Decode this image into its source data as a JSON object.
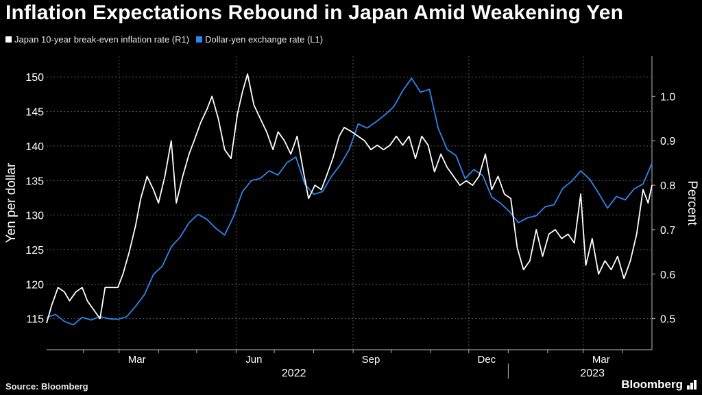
{
  "title": "Inflation Expectations Rebound in Japan Amid Weakening Yen",
  "legend": [
    {
      "label": "Japan 10-year break-even inflation rate (R1)",
      "color": "#ffffff"
    },
    {
      "label": "Dollar-yen exchange rate (L1)",
      "color": "#2e86f0"
    }
  ],
  "source": "Source: Bloomberg",
  "brand": "Bloomberg",
  "chart_data": {
    "type": "line",
    "x_domain": [
      "2022-01-03",
      "2023-04-24"
    ],
    "x_ticks": [
      {
        "label": "Mar",
        "date": "2022-03-01"
      },
      {
        "label": "Jun",
        "date": "2022-06-01"
      },
      {
        "label": "Sep",
        "date": "2022-09-01"
      },
      {
        "label": "Dec",
        "date": "2022-12-01"
      },
      {
        "label": "Mar",
        "date": "2023-03-01"
      }
    ],
    "year_labels": [
      "2022",
      "2023"
    ],
    "left_axis": {
      "label": "Yen per dollar",
      "range": [
        110.5,
        153
      ],
      "ticks": [
        115,
        120,
        125,
        130,
        135,
        140,
        145,
        150
      ]
    },
    "right_axis": {
      "label": "Percent",
      "range": [
        0.43,
        1.09
      ],
      "ticks": [
        "0.5",
        "0.6",
        "0.7",
        "0.8",
        "0.9",
        "1.0"
      ]
    },
    "grid": true,
    "legend_position": "top-left",
    "series": [
      {
        "name": "Dollar-yen exchange rate (L1)",
        "axis": "left",
        "color": "#2e86f0",
        "points": [
          [
            "2022-01-03",
            115.2
          ],
          [
            "2022-01-10",
            115.6
          ],
          [
            "2022-01-17",
            114.6
          ],
          [
            "2022-01-24",
            114.1
          ],
          [
            "2022-01-31",
            115.2
          ],
          [
            "2022-02-07",
            114.8
          ],
          [
            "2022-02-14",
            115.3
          ],
          [
            "2022-02-21",
            115.0
          ],
          [
            "2022-02-28",
            114.9
          ],
          [
            "2022-03-07",
            115.3
          ],
          [
            "2022-03-14",
            116.8
          ],
          [
            "2022-03-21",
            118.5
          ],
          [
            "2022-03-28",
            121.4
          ],
          [
            "2022-04-04",
            122.6
          ],
          [
            "2022-04-11",
            125.4
          ],
          [
            "2022-04-18",
            126.8
          ],
          [
            "2022-04-25",
            128.9
          ],
          [
            "2022-05-02",
            130.1
          ],
          [
            "2022-05-09",
            129.4
          ],
          [
            "2022-05-16",
            128.1
          ],
          [
            "2022-05-23",
            127.1
          ],
          [
            "2022-05-30",
            129.8
          ],
          [
            "2022-06-06",
            133.4
          ],
          [
            "2022-06-13",
            135.0
          ],
          [
            "2022-06-20",
            135.3
          ],
          [
            "2022-06-27",
            136.4
          ],
          [
            "2022-07-04",
            135.8
          ],
          [
            "2022-07-11",
            137.6
          ],
          [
            "2022-07-18",
            138.4
          ],
          [
            "2022-07-25",
            134.5
          ],
          [
            "2022-08-01",
            133.0
          ],
          [
            "2022-08-08",
            133.4
          ],
          [
            "2022-08-15",
            135.6
          ],
          [
            "2022-08-22",
            137.3
          ],
          [
            "2022-08-29",
            139.5
          ],
          [
            "2022-09-05",
            143.2
          ],
          [
            "2022-09-12",
            142.6
          ],
          [
            "2022-09-19",
            143.5
          ],
          [
            "2022-09-26",
            144.5
          ],
          [
            "2022-10-03",
            145.7
          ],
          [
            "2022-10-10",
            148.0
          ],
          [
            "2022-10-17",
            149.8
          ],
          [
            "2022-10-24",
            147.8
          ],
          [
            "2022-10-31",
            148.2
          ],
          [
            "2022-11-07",
            142.5
          ],
          [
            "2022-11-14",
            139.5
          ],
          [
            "2022-11-21",
            138.6
          ],
          [
            "2022-11-28",
            135.3
          ],
          [
            "2022-12-05",
            136.6
          ],
          [
            "2022-12-12",
            135.7
          ],
          [
            "2022-12-19",
            132.6
          ],
          [
            "2022-12-26",
            131.7
          ],
          [
            "2023-01-02",
            130.5
          ],
          [
            "2023-01-09",
            128.9
          ],
          [
            "2023-01-16",
            129.6
          ],
          [
            "2023-01-23",
            129.9
          ],
          [
            "2023-01-30",
            131.2
          ],
          [
            "2023-02-06",
            131.5
          ],
          [
            "2023-02-13",
            133.9
          ],
          [
            "2023-02-20",
            134.9
          ],
          [
            "2023-02-27",
            136.4
          ],
          [
            "2023-03-06",
            135.2
          ],
          [
            "2023-03-13",
            133.2
          ],
          [
            "2023-03-20",
            131.0
          ],
          [
            "2023-03-27",
            132.7
          ],
          [
            "2023-04-03",
            132.2
          ],
          [
            "2023-04-10",
            133.8
          ],
          [
            "2023-04-17",
            134.5
          ],
          [
            "2023-04-24",
            137.5
          ]
        ]
      },
      {
        "name": "Japan 10-year break-even inflation rate (R1)",
        "axis": "right",
        "color": "#ffffff",
        "points": [
          [
            "2022-01-03",
            0.49
          ],
          [
            "2022-01-07",
            0.53
          ],
          [
            "2022-01-12",
            0.57
          ],
          [
            "2022-01-17",
            0.56
          ],
          [
            "2022-01-21",
            0.54
          ],
          [
            "2022-01-26",
            0.56
          ],
          [
            "2022-01-31",
            0.57
          ],
          [
            "2022-02-04",
            0.54
          ],
          [
            "2022-02-09",
            0.52
          ],
          [
            "2022-02-14",
            0.5
          ],
          [
            "2022-02-18",
            0.57
          ],
          [
            "2022-02-23",
            0.57
          ],
          [
            "2022-02-28",
            0.57
          ],
          [
            "2022-03-04",
            0.6
          ],
          [
            "2022-03-09",
            0.65
          ],
          [
            "2022-03-14",
            0.71
          ],
          [
            "2022-03-18",
            0.77
          ],
          [
            "2022-03-23",
            0.82
          ],
          [
            "2022-03-28",
            0.79
          ],
          [
            "2022-04-01",
            0.76
          ],
          [
            "2022-04-06",
            0.82
          ],
          [
            "2022-04-11",
            0.9
          ],
          [
            "2022-04-15",
            0.76
          ],
          [
            "2022-04-20",
            0.82
          ],
          [
            "2022-04-25",
            0.87
          ],
          [
            "2022-04-29",
            0.9
          ],
          [
            "2022-05-04",
            0.94
          ],
          [
            "2022-05-09",
            0.97
          ],
          [
            "2022-05-13",
            1.0
          ],
          [
            "2022-05-18",
            0.95
          ],
          [
            "2022-05-23",
            0.88
          ],
          [
            "2022-05-28",
            0.86
          ],
          [
            "2022-06-02",
            0.96
          ],
          [
            "2022-06-06",
            1.01
          ],
          [
            "2022-06-10",
            1.05
          ],
          [
            "2022-06-15",
            0.98
          ],
          [
            "2022-06-20",
            0.95
          ],
          [
            "2022-06-25",
            0.92
          ],
          [
            "2022-06-30",
            0.88
          ],
          [
            "2022-07-04",
            0.92
          ],
          [
            "2022-07-09",
            0.9
          ],
          [
            "2022-07-14",
            0.87
          ],
          [
            "2022-07-19",
            0.91
          ],
          [
            "2022-07-24",
            0.83
          ],
          [
            "2022-07-28",
            0.77
          ],
          [
            "2022-08-02",
            0.8
          ],
          [
            "2022-08-07",
            0.79
          ],
          [
            "2022-08-11",
            0.82
          ],
          [
            "2022-08-16",
            0.86
          ],
          [
            "2022-08-21",
            0.91
          ],
          [
            "2022-08-25",
            0.93
          ],
          [
            "2022-08-31",
            0.92
          ],
          [
            "2022-09-05",
            0.91
          ],
          [
            "2022-09-10",
            0.9
          ],
          [
            "2022-09-15",
            0.88
          ],
          [
            "2022-09-20",
            0.89
          ],
          [
            "2022-09-25",
            0.88
          ],
          [
            "2022-09-30",
            0.89
          ],
          [
            "2022-10-05",
            0.91
          ],
          [
            "2022-10-10",
            0.89
          ],
          [
            "2022-10-15",
            0.91
          ],
          [
            "2022-10-20",
            0.86
          ],
          [
            "2022-10-25",
            0.91
          ],
          [
            "2022-10-30",
            0.89
          ],
          [
            "2022-11-04",
            0.83
          ],
          [
            "2022-11-09",
            0.87
          ],
          [
            "2022-11-14",
            0.84
          ],
          [
            "2022-11-19",
            0.82
          ],
          [
            "2022-11-24",
            0.8
          ],
          [
            "2022-11-29",
            0.81
          ],
          [
            "2022-12-04",
            0.8
          ],
          [
            "2022-12-09",
            0.82
          ],
          [
            "2022-12-14",
            0.87
          ],
          [
            "2022-12-19",
            0.79
          ],
          [
            "2022-12-24",
            0.82
          ],
          [
            "2022-12-29",
            0.78
          ],
          [
            "2023-01-03",
            0.77
          ],
          [
            "2023-01-08",
            0.66
          ],
          [
            "2023-01-13",
            0.61
          ],
          [
            "2023-01-18",
            0.63
          ],
          [
            "2023-01-23",
            0.7
          ],
          [
            "2023-01-28",
            0.64
          ],
          [
            "2023-02-02",
            0.69
          ],
          [
            "2023-02-07",
            0.7
          ],
          [
            "2023-02-12",
            0.68
          ],
          [
            "2023-02-17",
            0.69
          ],
          [
            "2023-02-22",
            0.67
          ],
          [
            "2023-02-27",
            0.78
          ],
          [
            "2023-03-03",
            0.62
          ],
          [
            "2023-03-08",
            0.68
          ],
          [
            "2023-03-13",
            0.6
          ],
          [
            "2023-03-18",
            0.63
          ],
          [
            "2023-03-23",
            0.61
          ],
          [
            "2023-03-28",
            0.64
          ],
          [
            "2023-04-02",
            0.59
          ],
          [
            "2023-04-07",
            0.63
          ],
          [
            "2023-04-12",
            0.69
          ],
          [
            "2023-04-17",
            0.79
          ],
          [
            "2023-04-21",
            0.76
          ],
          [
            "2023-04-24",
            0.8
          ]
        ]
      }
    ]
  }
}
